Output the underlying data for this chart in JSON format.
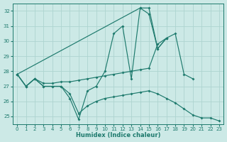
{
  "xlabel": "Humidex (Indice chaleur)",
  "xlim": [
    -0.5,
    23.5
  ],
  "ylim": [
    24.5,
    32.5
  ],
  "yticks": [
    25,
    26,
    27,
    28,
    29,
    30,
    31,
    32
  ],
  "xticks": [
    0,
    1,
    2,
    3,
    4,
    5,
    6,
    7,
    8,
    9,
    10,
    11,
    12,
    13,
    14,
    15,
    16,
    17,
    18,
    19,
    20,
    21,
    22,
    23
  ],
  "bg_color": "#cce9e6",
  "grid_color": "#aed4d0",
  "line_color": "#1e7a6d",
  "lines": [
    {
      "x": [
        0,
        1,
        2,
        3,
        4,
        5,
        6,
        7,
        8,
        9,
        10,
        11,
        12,
        13,
        14,
        15,
        16,
        17
      ],
      "y": [
        27.8,
        27.0,
        27.5,
        27.0,
        27.0,
        27.0,
        26.2,
        24.8,
        26.7,
        27.0,
        28.0,
        30.5,
        31.0,
        27.5,
        32.2,
        31.8,
        29.5,
        30.2
      ]
    },
    {
      "x": [
        0,
        14,
        15,
        16,
        17
      ],
      "y": [
        27.8,
        32.2,
        32.2,
        29.5,
        30.2
      ]
    },
    {
      "x": [
        0,
        1,
        2,
        3,
        4,
        5,
        6,
        7,
        8,
        9,
        10,
        11,
        12,
        13,
        14,
        15,
        16,
        17,
        18,
        19,
        20
      ],
      "y": [
        27.8,
        27.0,
        27.5,
        27.2,
        27.2,
        27.3,
        27.3,
        27.4,
        27.5,
        27.6,
        27.7,
        27.8,
        27.9,
        28.0,
        28.1,
        28.2,
        29.8,
        30.2,
        30.5,
        27.8,
        27.5
      ]
    },
    {
      "x": [
        0,
        1,
        2,
        3,
        4,
        5,
        6,
        7,
        8,
        9,
        10,
        11,
        12,
        13,
        14,
        15,
        16,
        17,
        18,
        19,
        20,
        21,
        22,
        23
      ],
      "y": [
        27.8,
        27.0,
        27.5,
        27.0,
        27.0,
        27.0,
        26.5,
        25.2,
        25.7,
        26.0,
        26.2,
        26.3,
        26.4,
        26.5,
        26.6,
        26.7,
        26.5,
        26.2,
        25.9,
        25.5,
        25.1,
        24.9,
        24.9,
        24.7
      ]
    }
  ]
}
